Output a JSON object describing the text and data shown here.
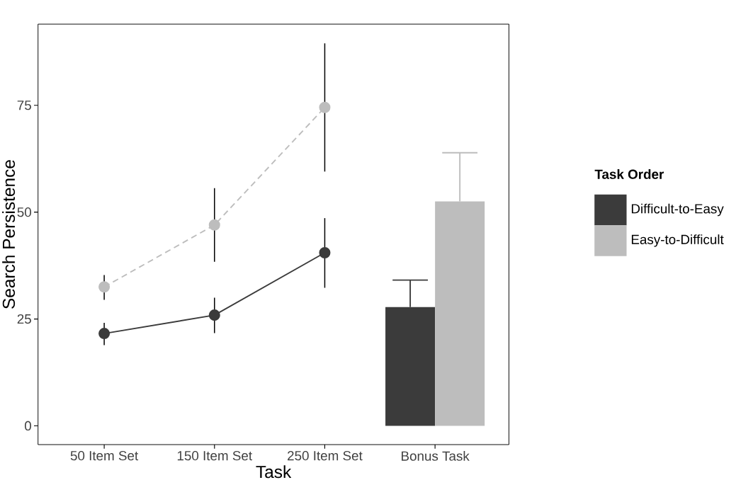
{
  "chart_data": {
    "type": "line",
    "xlabel": "Task",
    "ylabel": "Search Persistence",
    "legend_title": "Task Order",
    "legend": "right",
    "grid": false,
    "categories": [
      "50 Item Set",
      "150 Item Set",
      "250 Item Set",
      "Bonus Task"
    ],
    "ylim": [
      -4.4,
      94
    ],
    "yticks": [
      0,
      25,
      50,
      75
    ],
    "series": [
      {
        "color": "#3b3b3b",
        "values": [
          21.6,
          25.9,
          40.5,
          null
        ],
        "errors": [
          [
            18.9,
            24.1
          ],
          [
            21.7,
            30.0
          ],
          [
            32.3,
            48.6
          ],
          null
        ],
        "line_style": "solid",
        "marker": "circle"
      },
      {
        "color": "#bdbdbd",
        "values": [
          32.5,
          47.0,
          74.5,
          null
        ],
        "errors": [
          [
            29.5,
            35.3
          ],
          [
            38.4,
            55.6
          ],
          [
            59.5,
            89.5
          ],
          null
        ],
        "line_style": "dashed",
        "marker": "circle"
      },
      {
        "type": "bar",
        "name": "Difficult-to-Easy",
        "color": "#3b3b3b",
        "values": [
          null,
          null,
          null,
          27.8
        ],
        "errors": [
          null,
          null,
          null,
          [
            27.8,
            34.1
          ]
        ]
      },
      {
        "type": "bar",
        "name": "Easy-to-Difficult",
        "color": "#bdbdbd",
        "values": [
          null,
          null,
          null,
          52.5
        ],
        "errors": [
          null,
          null,
          null,
          [
            52.5,
            63.9
          ]
        ]
      }
    ]
  }
}
